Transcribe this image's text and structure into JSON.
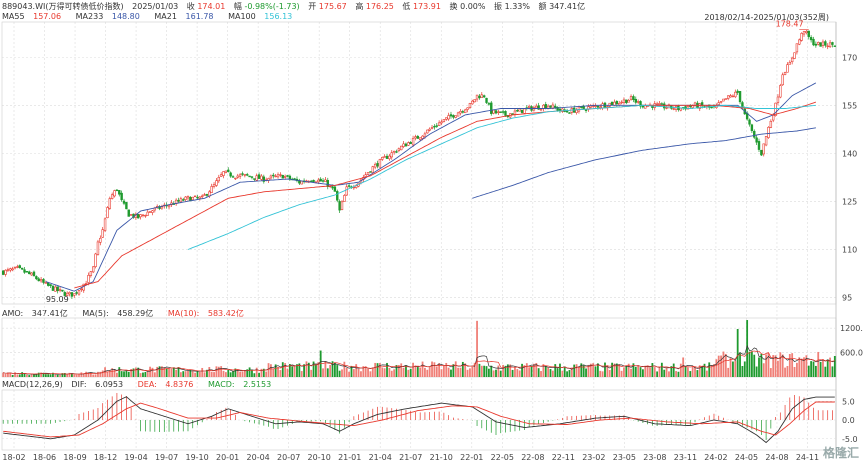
{
  "header": {
    "code_name": "889043.WI(万得可转债低价指数)",
    "date": "2025/01/03",
    "close_label": "收",
    "close": "174.01",
    "change_label": "幅",
    "change": "-0.98%(-1.73)",
    "open_label": "开",
    "open": "175.67",
    "high_label": "高",
    "high": "176.25",
    "low_label": "低",
    "low": "173.91",
    "turnover_label": "换",
    "turnover": "0.00%",
    "amplitude_label": "振",
    "amplitude": "1.33%",
    "amount_label": "额",
    "amount": "347.41亿"
  },
  "ma_legend": [
    {
      "name": "MA55",
      "value": "157.06",
      "color": "#e8382d"
    },
    {
      "name": "MA233",
      "value": "148.80",
      "color": "#3a57a8"
    },
    {
      "name": "MA21",
      "value": "161.78",
      "color": "#3a57a8"
    },
    {
      "name": "MA100",
      "value": "156.13",
      "color": "#33c3d6"
    }
  ],
  "date_range": "2018/02/14-2025/01/03(352周)",
  "amo_legend": [
    {
      "name": "AMO:",
      "value": "347.41亿",
      "color": "#333333"
    },
    {
      "name": "MA(5):",
      "value": "458.29亿",
      "color": "#333333"
    },
    {
      "name": "MA(10):",
      "value": "583.42亿",
      "color": "#e8382d"
    }
  ],
  "macd_legend": [
    {
      "name": "MACD(12,26,9)",
      "value": "",
      "color": "#333333"
    },
    {
      "name": "DIF:",
      "value": "6.0953",
      "color": "#333333"
    },
    {
      "name": "DEA:",
      "value": "4.8376",
      "color": "#e8382d"
    },
    {
      "name": "MACD:",
      "value": "2.5153",
      "color": "#1e9a2e"
    }
  ],
  "watermark": "格隆汇",
  "chart_data": {
    "type": "candlestick",
    "x_ticks": [
      "18-02",
      "18-06",
      "18-09",
      "18-12",
      "19-04",
      "19-07",
      "19-10",
      "20-01",
      "20-04",
      "20-07",
      "20-10",
      "21-01",
      "21-04",
      "21-07",
      "21-10",
      "22-01",
      "22-05",
      "22-08",
      "22-11",
      "23-02",
      "23-05",
      "23-08",
      "23-11",
      "24-02",
      "24-05",
      "24-08",
      "24-11"
    ],
    "price_axis": {
      "ticks": [
        95,
        110,
        125,
        140,
        155,
        170
      ],
      "range": [
        93,
        181
      ]
    },
    "annotations": {
      "low_label": "95.09",
      "high_label": "178.47"
    },
    "price_keypoints": [
      [
        0,
        103
      ],
      [
        6,
        104
      ],
      [
        12,
        102
      ],
      [
        18,
        99
      ],
      [
        22,
        97.5
      ],
      [
        27,
        96
      ],
      [
        30,
        96
      ],
      [
        35,
        100
      ],
      [
        38,
        104
      ],
      [
        40,
        112
      ],
      [
        42,
        116
      ],
      [
        45,
        126
      ],
      [
        48,
        129
      ],
      [
        50,
        125
      ],
      [
        53,
        121
      ],
      [
        57,
        120
      ],
      [
        62,
        122
      ],
      [
        70,
        124
      ],
      [
        78,
        126
      ],
      [
        84,
        126
      ],
      [
        89,
        130
      ],
      [
        93,
        134
      ],
      [
        98,
        133
      ],
      [
        103,
        133
      ],
      [
        110,
        132
      ],
      [
        118,
        133
      ],
      [
        125,
        131
      ],
      [
        130,
        132
      ],
      [
        136,
        131
      ],
      [
        140,
        128
      ],
      [
        142,
        122
      ],
      [
        145,
        129
      ],
      [
        150,
        131
      ],
      [
        155,
        135
      ],
      [
        160,
        138
      ],
      [
        168,
        142
      ],
      [
        175,
        145
      ],
      [
        183,
        149
      ],
      [
        190,
        152
      ],
      [
        197,
        155
      ],
      [
        200,
        158
      ],
      [
        203,
        158
      ],
      [
        206,
        153
      ],
      [
        212,
        152
      ],
      [
        222,
        154
      ],
      [
        230,
        155
      ],
      [
        237,
        153
      ],
      [
        245,
        154
      ],
      [
        252,
        155
      ],
      [
        260,
        156
      ],
      [
        265,
        157
      ],
      [
        270,
        155
      ],
      [
        275,
        155
      ],
      [
        285,
        154
      ],
      [
        292,
        155
      ],
      [
        300,
        154
      ],
      [
        305,
        157
      ],
      [
        310,
        159
      ],
      [
        313,
        152
      ],
      [
        317,
        145
      ],
      [
        320,
        140
      ],
      [
        323,
        148
      ],
      [
        326,
        155
      ],
      [
        329,
        165
      ],
      [
        332,
        168
      ],
      [
        335,
        174
      ],
      [
        338,
        178.5
      ],
      [
        341,
        175
      ],
      [
        343,
        174
      ]
    ],
    "ma_keypoints": {
      "MA21": [
        [
          18,
          100
        ],
        [
          30,
          97
        ],
        [
          38,
          100
        ],
        [
          48,
          116
        ],
        [
          58,
          122
        ],
        [
          70,
          124
        ],
        [
          85,
          126
        ],
        [
          100,
          131
        ],
        [
          120,
          132
        ],
        [
          140,
          130
        ],
        [
          150,
          131
        ],
        [
          165,
          138
        ],
        [
          180,
          146
        ],
        [
          195,
          152
        ],
        [
          210,
          154
        ],
        [
          230,
          154
        ],
        [
          250,
          155
        ],
        [
          270,
          155
        ],
        [
          285,
          155
        ],
        [
          300,
          155
        ],
        [
          310,
          155
        ],
        [
          318,
          150
        ],
        [
          325,
          152
        ],
        [
          333,
          158
        ],
        [
          343,
          162
        ]
      ],
      "MA55": [
        [
          30,
          98
        ],
        [
          40,
          100
        ],
        [
          50,
          108
        ],
        [
          65,
          114
        ],
        [
          80,
          120
        ],
        [
          95,
          126
        ],
        [
          110,
          128
        ],
        [
          125,
          129
        ],
        [
          140,
          130
        ],
        [
          155,
          133
        ],
        [
          170,
          139
        ],
        [
          185,
          145
        ],
        [
          200,
          150
        ],
        [
          215,
          152
        ],
        [
          230,
          153
        ],
        [
          250,
          154
        ],
        [
          270,
          155
        ],
        [
          285,
          155
        ],
        [
          300,
          155
        ],
        [
          315,
          154
        ],
        [
          325,
          152
        ],
        [
          335,
          154
        ],
        [
          343,
          156
        ]
      ],
      "MA100": [
        [
          78,
          110
        ],
        [
          95,
          115
        ],
        [
          110,
          120
        ],
        [
          125,
          124
        ],
        [
          140,
          127
        ],
        [
          155,
          132
        ],
        [
          170,
          138
        ],
        [
          185,
          143
        ],
        [
          200,
          148
        ],
        [
          215,
          151
        ],
        [
          230,
          153
        ],
        [
          250,
          154
        ],
        [
          270,
          155
        ],
        [
          290,
          154
        ],
        [
          305,
          155
        ],
        [
          318,
          154
        ],
        [
          330,
          154
        ],
        [
          343,
          155
        ]
      ],
      "MA233": [
        [
          198,
          126
        ],
        [
          215,
          130
        ],
        [
          230,
          134
        ],
        [
          250,
          138
        ],
        [
          270,
          141
        ],
        [
          290,
          143
        ],
        [
          305,
          144
        ],
        [
          320,
          146
        ],
        [
          335,
          147
        ],
        [
          343,
          148
        ]
      ]
    },
    "amo_axis": {
      "ticks": [
        "1200.0",
        "600.0"
      ],
      "max": 1450
    },
    "macd_axis": {
      "ticks": [
        "5.0",
        "0.0",
        "-5.0"
      ],
      "range": [
        -8,
        8
      ]
    },
    "macd_keypoints": {
      "DIF": [
        [
          0,
          -3.5
        ],
        [
          20,
          -5
        ],
        [
          30,
          -4
        ],
        [
          40,
          0
        ],
        [
          48,
          5
        ],
        [
          52,
          6.2
        ],
        [
          58,
          3
        ],
        [
          68,
          1
        ],
        [
          78,
          -1
        ],
        [
          88,
          1
        ],
        [
          95,
          3
        ],
        [
          105,
          1
        ],
        [
          115,
          -1
        ],
        [
          125,
          -0.5
        ],
        [
          135,
          -1
        ],
        [
          142,
          -3
        ],
        [
          148,
          -1
        ],
        [
          158,
          1.5
        ],
        [
          170,
          3
        ],
        [
          185,
          4.5
        ],
        [
          198,
          3.5
        ],
        [
          208,
          -0.5
        ],
        [
          220,
          -2
        ],
        [
          235,
          -1
        ],
        [
          250,
          0.5
        ],
        [
          262,
          1
        ],
        [
          275,
          -1
        ],
        [
          290,
          -1.5
        ],
        [
          300,
          0
        ],
        [
          310,
          -1
        ],
        [
          318,
          -4
        ],
        [
          322,
          -6
        ],
        [
          327,
          -3
        ],
        [
          333,
          3
        ],
        [
          338,
          5.5
        ],
        [
          343,
          6.1
        ]
      ],
      "DEA": [
        [
          0,
          -3
        ],
        [
          20,
          -4.5
        ],
        [
          32,
          -4
        ],
        [
          42,
          -1
        ],
        [
          52,
          3
        ],
        [
          58,
          4.5
        ],
        [
          66,
          3
        ],
        [
          78,
          0.5
        ],
        [
          90,
          0.5
        ],
        [
          100,
          2
        ],
        [
          112,
          0.5
        ],
        [
          125,
          -0.3
        ],
        [
          138,
          -1
        ],
        [
          148,
          -1.5
        ],
        [
          160,
          0
        ],
        [
          175,
          2.5
        ],
        [
          190,
          3.8
        ],
        [
          200,
          3.5
        ],
        [
          210,
          1
        ],
        [
          222,
          -1
        ],
        [
          238,
          -1.2
        ],
        [
          252,
          0
        ],
        [
          265,
          0.5
        ],
        [
          280,
          -0.5
        ],
        [
          295,
          -1
        ],
        [
          310,
          -0.5
        ],
        [
          320,
          -3
        ],
        [
          326,
          -4
        ],
        [
          332,
          -1
        ],
        [
          338,
          2.5
        ],
        [
          343,
          4.8
        ]
      ]
    }
  }
}
